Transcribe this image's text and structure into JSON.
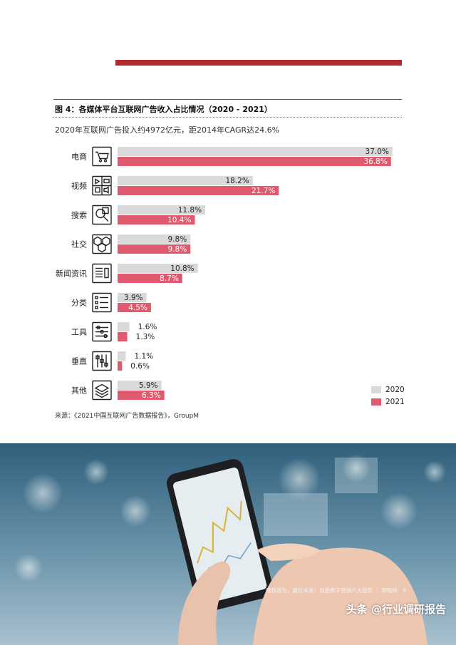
{
  "figure": {
    "title": "图 4：各媒体平台互联网广告收入占比情况（2020 - 2021）",
    "subtitle": "2020年互联网广告投入约4972亿元，距2014年CAGR达24.6%",
    "source": "来源：《2021中国互联网广告数据报告》，GroupM"
  },
  "footer": {
    "text": "顺势而为，赢在未来：洞悉数字营销六大趋势 ｜ 思略特　9",
    "watermark": "头条 @行业调研报告"
  },
  "colors": {
    "accent": "#b22a2e",
    "series_2020": "#d9d9d9",
    "series_2021": "#e05a6f"
  },
  "chart_data": {
    "type": "bar",
    "orientation": "horizontal",
    "categories": [
      "电商",
      "视频",
      "搜索",
      "社交",
      "新闻资讯",
      "分类",
      "工具",
      "垂直",
      "其他"
    ],
    "category_icons": [
      "shopping-cart-icon",
      "video-icon",
      "search-icon",
      "social-icon",
      "news-icon",
      "list-icon",
      "tools-icon",
      "vertical-sliders-icon",
      "layers-icon"
    ],
    "series": [
      {
        "name": "2020",
        "values": [
          37.0,
          18.2,
          11.8,
          9.8,
          10.8,
          3.9,
          1.6,
          1.1,
          5.9
        ],
        "labels": [
          "37.0%",
          "18.2%",
          "11.8%",
          "9.8%",
          "10.8%",
          "3.9%",
          "1.6%",
          "1.1%",
          "5.9%"
        ]
      },
      {
        "name": "2021",
        "values": [
          36.8,
          21.7,
          10.4,
          9.8,
          8.7,
          4.5,
          1.3,
          0.6,
          6.3
        ],
        "labels": [
          "36.8%",
          "21.7%",
          "10.4%",
          "9.8%",
          "8.7%",
          "4.5%",
          "1.3%",
          "0.6%",
          "6.3%"
        ]
      }
    ],
    "legend_position": "bottom-right",
    "grid": false
  }
}
